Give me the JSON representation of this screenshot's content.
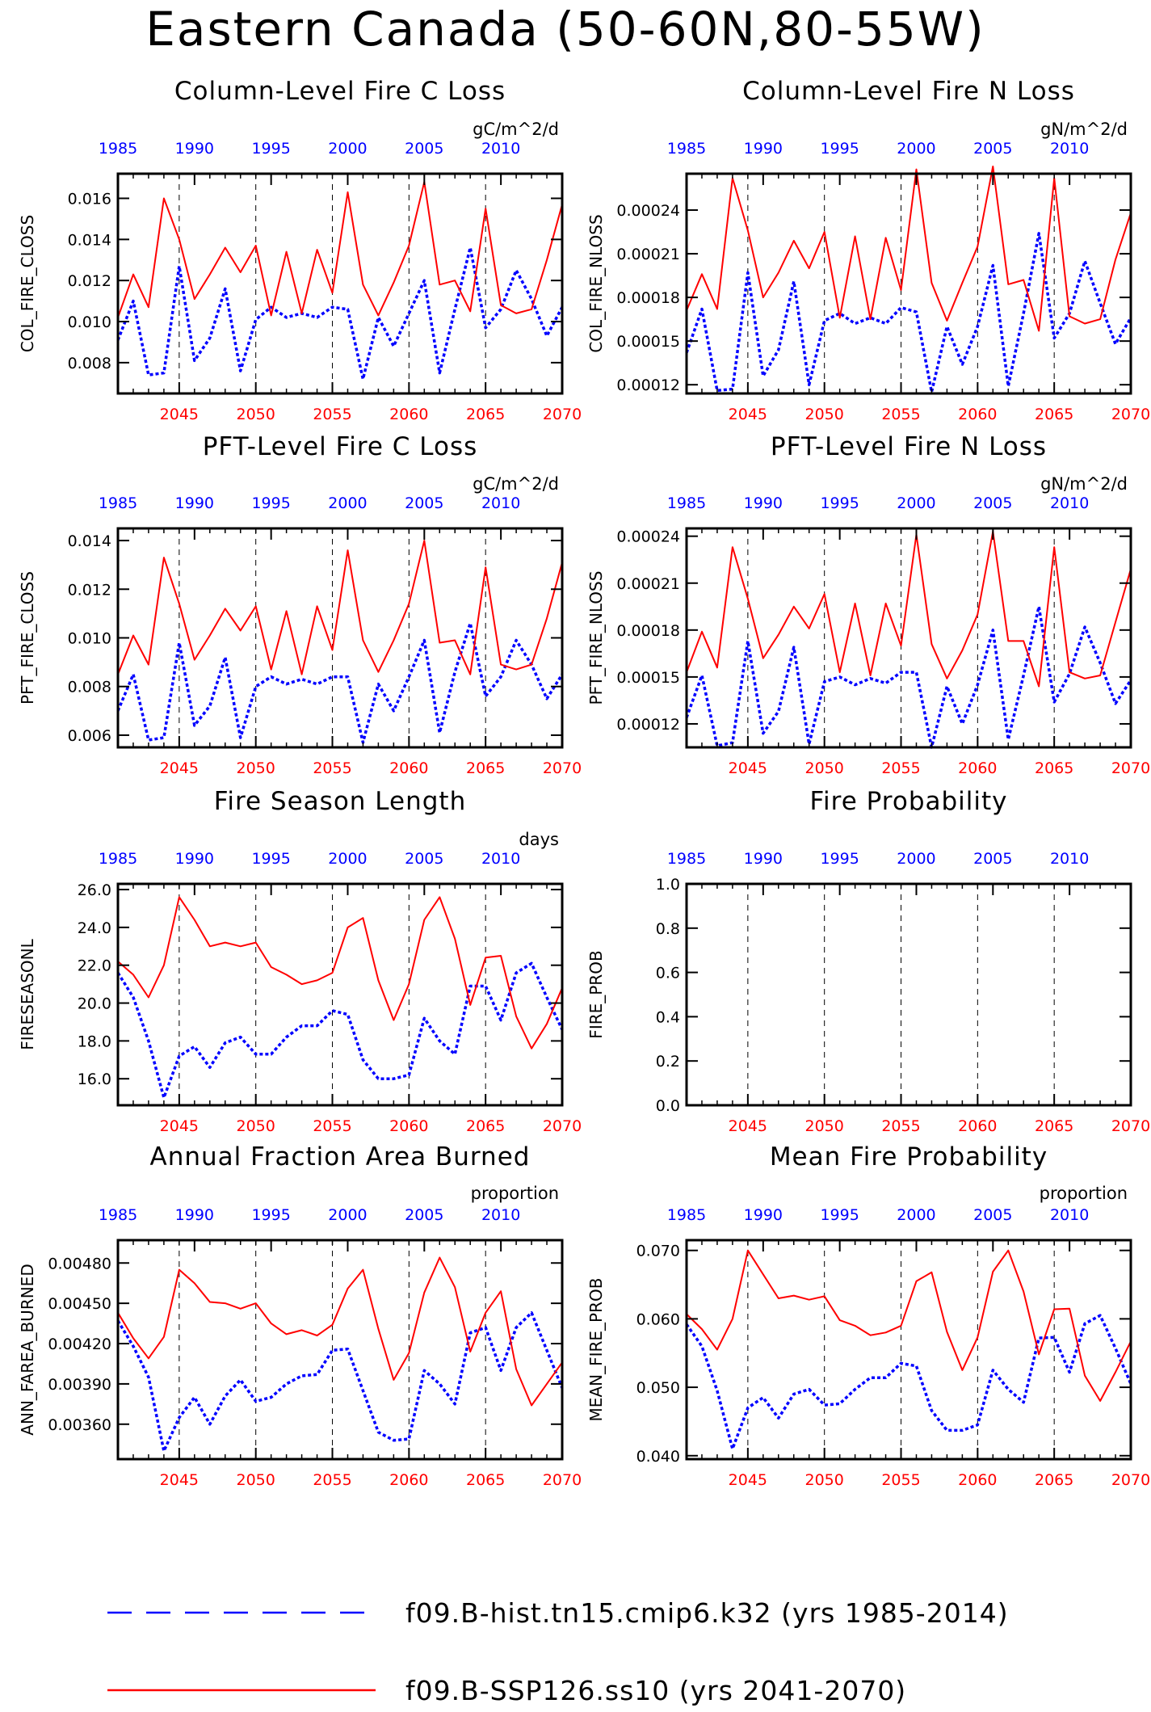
{
  "title": "Eastern Canada (50-60N,80-55W)",
  "colors": {
    "hist": "#0000ff",
    "future": "#ff0000",
    "axis": "#000000"
  },
  "legend": [
    {
      "label": "f09.B-hist.tn15.cmip6.k32 (yrs 1985-2014)",
      "color": "#0000ff",
      "style": "dashed"
    },
    {
      "label": "f09.B-SSP126.ss10 (yrs 2041-2070)",
      "color": "#ff0000",
      "style": "solid"
    }
  ],
  "chart_data": [
    {
      "type": "line",
      "title": "Column-Level Fire C Loss",
      "units": "gC/m^2/d",
      "ylabel": "COL_FIRE_CLOSS",
      "ylim": [
        0.0065,
        0.0172
      ],
      "yticks": [
        0.008,
        0.01,
        0.012,
        0.014,
        0.016
      ],
      "ytick_labels": [
        "0.008",
        "0.010",
        "0.012",
        "0.014",
        "0.016"
      ],
      "series": [
        {
          "name": "f09.B-hist.tn15.cmip6.k32",
          "values": [
            0.0091,
            0.011,
            0.0074,
            0.0075,
            0.0127,
            0.0081,
            0.0092,
            0.0116,
            0.0076,
            0.0101,
            0.0107,
            0.0102,
            0.0104,
            0.0102,
            0.0107,
            0.0106,
            0.0072,
            0.0102,
            0.0088,
            0.0104,
            0.012,
            0.0075,
            0.0106,
            0.0136,
            0.0097,
            0.0106,
            0.0125,
            0.0111,
            0.0093,
            0.0107
          ]
        },
        {
          "name": "f09.B-SSP126.ss10",
          "values": [
            0.0102,
            0.0123,
            0.0107,
            0.016,
            0.014,
            0.0111,
            0.0123,
            0.0136,
            0.0124,
            0.0137,
            0.0103,
            0.0134,
            0.0104,
            0.0135,
            0.0114,
            0.0163,
            0.0118,
            0.0103,
            0.0119,
            0.0137,
            0.0168,
            0.0118,
            0.012,
            0.0105,
            0.0155,
            0.0108,
            0.0104,
            0.0106,
            0.013,
            0.0157
          ]
        }
      ]
    },
    {
      "type": "line",
      "title": "Column-Level Fire N Loss",
      "units": "gN/m^2/d",
      "ylabel": "COL_FIRE_NLOSS",
      "ylim": [
        0.000114,
        0.000265
      ],
      "yticks": [
        0.00012,
        0.00015,
        0.00018,
        0.00021,
        0.00024
      ],
      "ytick_labels": [
        "0.00012",
        "0.00015",
        "0.00018",
        "0.00021",
        "0.00024"
      ],
      "series": [
        {
          "name": "f09.B-hist.tn15.cmip6.k32",
          "values": [
            0.000142,
            0.000172,
            0.000116,
            0.000117,
            0.000197,
            0.000126,
            0.000144,
            0.000191,
            0.00012,
            0.000164,
            0.000169,
            0.000162,
            0.000166,
            0.000162,
            0.000173,
            0.00017,
            0.000115,
            0.00016,
            0.000134,
            0.00016,
            0.000202,
            0.000119,
            0.000169,
            0.000224,
            0.000152,
            0.000169,
            0.000205,
            0.000176,
            0.000148,
            0.000166
          ]
        },
        {
          "name": "f09.B-SSP126.ss10",
          "values": [
            0.000171,
            0.000196,
            0.000172,
            0.000262,
            0.000226,
            0.00018,
            0.000197,
            0.000219,
            0.0002,
            0.000225,
            0.000166,
            0.000222,
            0.000165,
            0.000221,
            0.000185,
            0.000268,
            0.00019,
            0.000164,
            0.00019,
            0.000215,
            0.00027,
            0.000189,
            0.000192,
            0.000157,
            0.000262,
            0.000167,
            0.000162,
            0.000165,
            0.000206,
            0.000238
          ]
        }
      ]
    },
    {
      "type": "line",
      "title": "PFT-Level Fire C Loss",
      "units": "gC/m^2/d",
      "ylabel": "PFT_FIRE_CLOSS",
      "ylim": [
        0.0055,
        0.0145
      ],
      "yticks": [
        0.006,
        0.008,
        0.01,
        0.012,
        0.014
      ],
      "ytick_labels": [
        "0.006",
        "0.008",
        "0.010",
        "0.012",
        "0.014"
      ],
      "series": [
        {
          "name": "f09.B-hist.tn15.cmip6.k32",
          "values": [
            0.007,
            0.0085,
            0.0058,
            0.0059,
            0.0098,
            0.0064,
            0.0072,
            0.0092,
            0.0059,
            0.008,
            0.0084,
            0.0081,
            0.0083,
            0.0081,
            0.0084,
            0.0084,
            0.0057,
            0.0081,
            0.007,
            0.0084,
            0.0099,
            0.0061,
            0.0086,
            0.0106,
            0.0076,
            0.0084,
            0.0099,
            0.0089,
            0.0075,
            0.0085
          ]
        },
        {
          "name": "f09.B-SSP126.ss10",
          "values": [
            0.0085,
            0.0101,
            0.0089,
            0.0133,
            0.0114,
            0.0091,
            0.0101,
            0.0112,
            0.0103,
            0.0113,
            0.0087,
            0.0111,
            0.0085,
            0.0113,
            0.0095,
            0.0136,
            0.0099,
            0.0086,
            0.0099,
            0.0114,
            0.014,
            0.0098,
            0.0099,
            0.0085,
            0.0129,
            0.0089,
            0.0087,
            0.0089,
            0.0108,
            0.0131
          ]
        }
      ]
    },
    {
      "type": "line",
      "title": "PFT-Level Fire N Loss",
      "units": "gN/m^2/d",
      "ylabel": "PFT_FIRE_NLOSS",
      "ylim": [
        0.000105,
        0.000245
      ],
      "yticks": [
        0.00012,
        0.00015,
        0.00018,
        0.00021,
        0.00024
      ],
      "ytick_labels": [
        "0.00012",
        "0.00015",
        "0.00018",
        "0.00021",
        "0.00024"
      ],
      "series": [
        {
          "name": "f09.B-hist.tn15.cmip6.k32",
          "values": [
            0.000124,
            0.000151,
            0.000106,
            0.000108,
            0.000173,
            0.000114,
            0.000128,
            0.000169,
            0.000107,
            0.000147,
            0.00015,
            0.000145,
            0.000149,
            0.000146,
            0.000153,
            0.000153,
            0.000105,
            0.000144,
            0.00012,
            0.000145,
            0.00018,
            0.00011,
            0.000151,
            0.000195,
            0.000134,
            0.000152,
            0.000182,
            0.000159,
            0.000133,
            0.000148
          ]
        },
        {
          "name": "f09.B-SSP126.ss10",
          "values": [
            0.000153,
            0.000179,
            0.000156,
            0.000233,
            0.0002,
            0.000162,
            0.000177,
            0.000195,
            0.000181,
            0.000203,
            0.000153,
            0.000197,
            0.000151,
            0.000197,
            0.00017,
            0.000241,
            0.000171,
            0.000149,
            0.000167,
            0.00019,
            0.000243,
            0.000173,
            0.000173,
            0.000144,
            0.000233,
            0.000153,
            0.000149,
            0.000151,
            0.000185,
            0.000219
          ]
        }
      ]
    },
    {
      "type": "line",
      "title": "Fire Season Length",
      "units": "days",
      "ylabel": "FIRESEASONL",
      "ylim": [
        14.6,
        26.3
      ],
      "yticks": [
        16,
        18,
        20,
        22,
        24,
        26
      ],
      "ytick_labels": [
        "16.0",
        "18.0",
        "20.0",
        "22.0",
        "24.0",
        "26.0"
      ],
      "series": [
        {
          "name": "f09.B-hist.tn15.cmip6.k32",
          "values": [
            21.6,
            20.3,
            18.0,
            15.0,
            17.2,
            17.7,
            16.6,
            17.9,
            18.2,
            17.3,
            17.3,
            18.2,
            18.8,
            18.8,
            19.6,
            19.4,
            17.0,
            16.0,
            16.0,
            16.2,
            19.2,
            18.0,
            17.3,
            20.9,
            20.9,
            19.1,
            21.6,
            22.1,
            20.3,
            18.6
          ]
        },
        {
          "name": "f09.B-SSP126.ss10",
          "values": [
            22.2,
            21.5,
            20.3,
            22.0,
            25.6,
            24.4,
            23.0,
            23.2,
            23.0,
            23.2,
            21.9,
            21.5,
            21.0,
            21.2,
            21.6,
            24.0,
            24.5,
            21.2,
            19.1,
            21.0,
            24.4,
            25.6,
            23.4,
            19.9,
            22.4,
            22.5,
            19.3,
            17.6,
            18.9,
            20.8
          ]
        }
      ]
    },
    {
      "type": "line",
      "title": "Fire Probability",
      "units": "",
      "ylabel": "FIRE_PROB",
      "ylim": [
        0.0,
        1.0
      ],
      "yticks": [
        0.0,
        0.2,
        0.4,
        0.6,
        0.8,
        1.0
      ],
      "ytick_labels": [
        "0.0",
        "0.2",
        "0.4",
        "0.6",
        "0.8",
        "1.0"
      ],
      "series": []
    },
    {
      "type": "line",
      "title": "Annual Fraction Area Burned",
      "units": "proportion",
      "ylabel": "ANN_FAREA_BURNED",
      "ylim": [
        0.00334,
        0.00497
      ],
      "yticks": [
        0.0036,
        0.0039,
        0.0042,
        0.0045,
        0.0048
      ],
      "ytick_labels": [
        "0.00360",
        "0.00390",
        "0.00420",
        "0.00450",
        "0.00480"
      ],
      "series": [
        {
          "name": "f09.B-hist.tn15.cmip6.k32",
          "values": [
            0.00437,
            0.00418,
            0.00395,
            0.0034,
            0.00365,
            0.0038,
            0.0036,
            0.00381,
            0.00393,
            0.00377,
            0.0038,
            0.0039,
            0.00396,
            0.00397,
            0.00415,
            0.00416,
            0.00385,
            0.00354,
            0.00348,
            0.00349,
            0.004,
            0.0039,
            0.00375,
            0.00428,
            0.00432,
            0.004,
            0.00432,
            0.00443,
            0.00415,
            0.00387
          ]
        },
        {
          "name": "f09.B-SSP126.ss10",
          "values": [
            0.00443,
            0.00424,
            0.00409,
            0.00425,
            0.00475,
            0.00465,
            0.00451,
            0.0045,
            0.00446,
            0.0045,
            0.00435,
            0.00427,
            0.0043,
            0.00426,
            0.00434,
            0.00461,
            0.00475,
            0.00431,
            0.00393,
            0.00413,
            0.00458,
            0.00484,
            0.00462,
            0.00414,
            0.00443,
            0.00459,
            0.00401,
            0.00374,
            0.0039,
            0.00406
          ]
        }
      ]
    },
    {
      "type": "line",
      "title": "Mean Fire Probability",
      "units": "proportion",
      "ylabel": "MEAN_FIRE_PROB",
      "ylim": [
        0.0395,
        0.0715
      ],
      "yticks": [
        0.04,
        0.05,
        0.06,
        0.07
      ],
      "ytick_labels": [
        "0.040",
        "0.050",
        "0.060",
        "0.070"
      ],
      "series": [
        {
          "name": "f09.B-hist.tn15.cmip6.k32",
          "values": [
            0.0592,
            0.056,
            0.0495,
            0.041,
            0.047,
            0.0485,
            0.0455,
            0.049,
            0.0497,
            0.0474,
            0.0476,
            0.0497,
            0.0514,
            0.0514,
            0.0535,
            0.0531,
            0.0466,
            0.0437,
            0.0437,
            0.0445,
            0.0525,
            0.0497,
            0.0478,
            0.0572,
            0.0573,
            0.0522,
            0.0593,
            0.0605,
            0.0557,
            0.0505
          ]
        },
        {
          "name": "f09.B-SSP126.ss10",
          "values": [
            0.0607,
            0.0585,
            0.0555,
            0.06,
            0.07,
            0.0665,
            0.063,
            0.0634,
            0.0628,
            0.0633,
            0.0598,
            0.059,
            0.0576,
            0.058,
            0.059,
            0.0655,
            0.0668,
            0.0581,
            0.0525,
            0.0573,
            0.0669,
            0.07,
            0.064,
            0.0548,
            0.0614,
            0.0615,
            0.0517,
            0.048,
            0.0522,
            0.0567
          ]
        }
      ]
    }
  ],
  "bottom_axis_ticks": [
    "2045",
    "2050",
    "2055",
    "2060",
    "2065",
    "2070"
  ],
  "top_axis_ticks": [
    "1985",
    "1990",
    "1995",
    "2000",
    "2005",
    "2010"
  ],
  "x_range_future": [
    2041,
    2070
  ],
  "x_range_hist": [
    1985,
    2014
  ]
}
